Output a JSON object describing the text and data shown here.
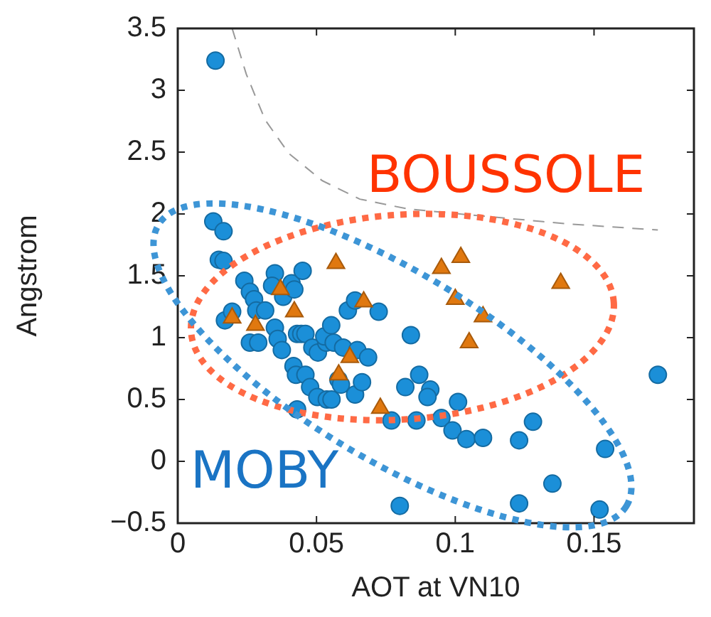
{
  "chart_data": {
    "type": "scatter",
    "xlabel": "AOT at VN10",
    "ylabel": "Angstrom",
    "xlim": [
      0,
      0.186
    ],
    "ylim": [
      -0.5,
      3.5
    ],
    "xticks": [
      0,
      0.05,
      0.1,
      0.15
    ],
    "yticks": [
      -0.5,
      0,
      0.5,
      1,
      1.5,
      2,
      2.5,
      3,
      3.5
    ],
    "grid": false,
    "legend": false,
    "annotations": [
      "BOUSSOLE",
      "MOBY"
    ],
    "series": [
      {
        "type": "line",
        "color": "#999999",
        "line_style": "dashed",
        "marker": "none",
        "x": [
          0.0196,
          0.0247,
          0.0315,
          0.04,
          0.052,
          0.0656,
          0.083,
          0.1065,
          0.1405,
          0.173
        ],
        "values": [
          3.5,
          3.13,
          2.76,
          2.49,
          2.27,
          2.12,
          2.04,
          1.99,
          1.92,
          1.87
        ]
      },
      {
        "type": "scatter",
        "color": "#1b8fd8",
        "marker": "circle",
        "x": [
          0.0136,
          0.0128,
          0.0165,
          0.0148,
          0.0165,
          0.017,
          0.0196,
          0.024,
          0.026,
          0.0275,
          0.0283,
          0.0315,
          0.026,
          0.029,
          0.035,
          0.034,
          0.038,
          0.041,
          0.042,
          0.045,
          0.035,
          0.036,
          0.0375,
          0.043,
          0.0445,
          0.046,
          0.0485,
          0.0505,
          0.0535,
          0.0528,
          0.0553,
          0.0562,
          0.0613,
          0.0639,
          0.0724,
          0.0596,
          0.0647,
          0.0686,
          0.0417,
          0.0426,
          0.046,
          0.0477,
          0.0503,
          0.0537,
          0.0554,
          0.0579,
          0.0588,
          0.0639,
          0.0664,
          0.043,
          0.084,
          0.082,
          0.087,
          0.091,
          0.09,
          0.101,
          0.077,
          0.086,
          0.095,
          0.099,
          0.104,
          0.11,
          0.123,
          0.128,
          0.154,
          0.135,
          0.123,
          0.152,
          0.08,
          0.173
        ],
        "values": [
          3.24,
          1.94,
          1.86,
          1.63,
          1.62,
          1.14,
          1.21,
          1.46,
          1.37,
          1.31,
          1.22,
          1.22,
          0.96,
          0.96,
          1.52,
          1.42,
          1.33,
          1.44,
          1.39,
          1.54,
          1.08,
          0.99,
          0.9,
          1.03,
          1.03,
          1.03,
          0.92,
          0.88,
          0.96,
          1.01,
          1.1,
          0.96,
          1.22,
          1.3,
          1.21,
          0.92,
          0.9,
          0.84,
          0.77,
          0.7,
          0.7,
          0.6,
          0.52,
          0.5,
          0.5,
          0.66,
          0.62,
          0.54,
          0.64,
          0.42,
          1.02,
          0.6,
          0.7,
          0.58,
          0.52,
          0.48,
          0.33,
          0.33,
          0.35,
          0.25,
          0.18,
          0.19,
          0.17,
          0.32,
          0.1,
          -0.18,
          -0.34,
          -0.39,
          -0.36,
          0.7
        ]
      },
      {
        "type": "scatter",
        "color": "#e0780f",
        "marker": "triangle",
        "x": [
          0.0196,
          0.028,
          0.037,
          0.042,
          0.057,
          0.067,
          0.062,
          0.058,
          0.073,
          0.095,
          0.102,
          0.1,
          0.11,
          0.105,
          0.138
        ],
        "values": [
          1.16,
          1.1,
          1.39,
          1.21,
          1.6,
          1.29,
          0.84,
          0.7,
          0.43,
          1.56,
          1.65,
          1.31,
          1.17,
          0.96,
          1.44
        ]
      }
    ]
  }
}
